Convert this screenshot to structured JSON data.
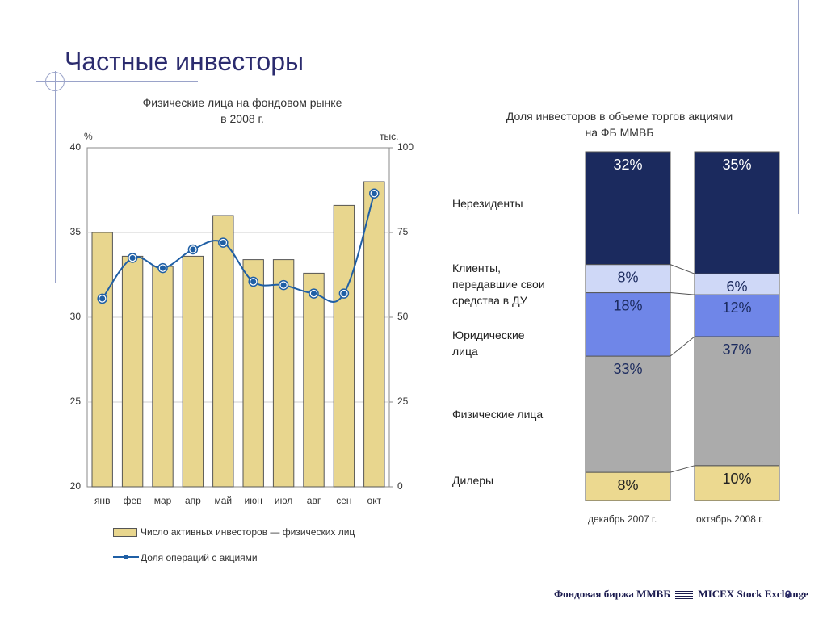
{
  "slide": {
    "title": "Частные инвесторы",
    "page_number": "9"
  },
  "footer": {
    "logo_ru": "Фондовая биржа ММВБ",
    "logo_en": "MICEX Stock Exchange"
  },
  "colors": {
    "bar_fill": "#e8d68e",
    "line": "#1f5fa5",
    "marker": "#1f5fa5",
    "navy": "#1b2a5e",
    "light_blue": "#cfd8f7",
    "mid_blue": "#6f86e8",
    "gray": "#ababab",
    "yellow": "#ecd990"
  },
  "chart_data": [
    {
      "type": "bar",
      "title": "Физические лица на фондовом рынке\nв 2008 г.",
      "title_line1": "Физические лица на фондовом рынке",
      "title_line2": "в 2008 г.",
      "categories": [
        "янв",
        "фев",
        "мар",
        "апр",
        "май",
        "июн",
        "июл",
        "авг",
        "сен",
        "окт"
      ],
      "left_axis": {
        "unit": "%",
        "range": [
          20,
          40
        ],
        "ticks": [
          "40",
          "35",
          "30",
          "25",
          "20"
        ]
      },
      "right_axis": {
        "unit": "тыс.",
        "range": [
          0,
          100
        ],
        "ticks": [
          "100",
          "75",
          "50",
          "25",
          "0"
        ]
      },
      "grid": true,
      "series": [
        {
          "name": "Число активных инвесторов — физических лиц",
          "kind": "bar",
          "axis": "right",
          "values": [
            75,
            68,
            65,
            68,
            80,
            67,
            67,
            63,
            83,
            90
          ]
        },
        {
          "name": "Доля операций с акциями",
          "kind": "line",
          "axis": "left",
          "values": [
            31.1,
            33.5,
            32.9,
            34.0,
            34.4,
            32.1,
            31.9,
            31.4,
            31.4,
            37.3
          ]
        }
      ],
      "legend_position": "bottom"
    },
    {
      "type": "bar",
      "stacked": true,
      "normalized": true,
      "title": "Доля инвесторов в объеме торгов акциями\nна ФБ ММВБ",
      "title_line1": "Доля инвесторов в объеме торгов акциями",
      "title_line2": "на ФБ ММВБ",
      "categories": [
        "декабрь 2007 г.",
        "октябрь 2008 г."
      ],
      "series": [
        {
          "name": "Дилеры",
          "values": [
            8,
            10
          ],
          "labels": [
            "8%",
            "10%"
          ]
        },
        {
          "name": "Физические лица",
          "values": [
            33,
            37
          ],
          "labels": [
            "33%",
            "37%"
          ]
        },
        {
          "name": "Юридические лица",
          "values": [
            18,
            12
          ],
          "labels": [
            "18%",
            "12%"
          ]
        },
        {
          "name": "Клиенты, передавшие свои средства в ДУ",
          "values": [
            8,
            6
          ],
          "labels": [
            "8%",
            "6%"
          ]
        },
        {
          "name": "Нерезиденты",
          "values": [
            32,
            35
          ],
          "labels": [
            "32%",
            "35%"
          ]
        }
      ],
      "series_labels_text": {
        "nonres": "Нерезиденты",
        "clients_1": "Клиенты,",
        "clients_2": "передавшие свои",
        "clients_3": "средства в ДУ",
        "legal_1": "Юридические",
        "legal_2": "лица",
        "phys": "Физические лица",
        "dealers": "Дилеры"
      }
    }
  ]
}
